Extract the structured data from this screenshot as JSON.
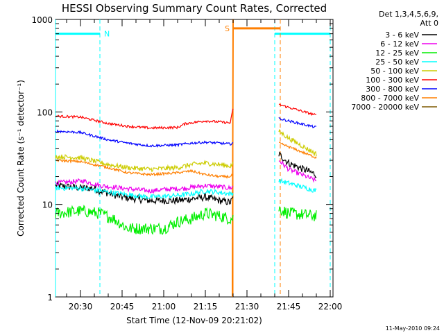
{
  "chart_data": {
    "type": "line",
    "title": "HESSI Observing Summary Count Rates, Corrected",
    "xlabel": "Start Time (12-Nov-09 20:21:02)",
    "ylabel": "Corrected Count Rate (s⁻¹ detector⁻¹)",
    "yscale": "log",
    "ylim": [
      1,
      1000
    ],
    "xlim": [
      "20:21",
      "22:01"
    ],
    "x_ticks": [
      "20:30",
      "20:45",
      "21:00",
      "21:15",
      "21:30",
      "21:45",
      "22:00"
    ],
    "y_ticks": [
      "1",
      "10",
      "100",
      "1000"
    ],
    "legend_header": [
      "Det 1,3,4,5,6,9,",
      "Att 0"
    ],
    "legend_position": "top-right",
    "series": [
      {
        "name": "3 - 6 keV",
        "color": "#000000",
        "noise": 0.03,
        "points": [
          [
            "20:21",
            16
          ],
          [
            "20:31",
            15
          ],
          [
            "20:35",
            15
          ],
          [
            "20:37",
            14
          ],
          [
            "20:45",
            12
          ],
          [
            "20:55",
            11
          ],
          [
            "21:05",
            11
          ],
          [
            "21:10",
            11.5
          ],
          [
            "21:15",
            12
          ],
          [
            "21:20",
            11
          ],
          [
            "21:24",
            10.5
          ],
          [
            "21:26",
            13
          ],
          [
            "21:41:30",
            35
          ],
          [
            "21:45",
            28
          ],
          [
            "21:55",
            21
          ]
        ]
      },
      {
        "name": "6 - 12 keV",
        "color": "#ee00ee",
        "noise": 0.02,
        "points": [
          [
            "20:21",
            17
          ],
          [
            "20:31",
            18
          ],
          [
            "20:37",
            16
          ],
          [
            "20:45",
            15
          ],
          [
            "20:55",
            14
          ],
          [
            "21:00",
            14.5
          ],
          [
            "21:08",
            15
          ],
          [
            "21:15",
            16
          ],
          [
            "21:20",
            15.5
          ],
          [
            "21:24",
            15
          ],
          [
            "21:41:30",
            30
          ],
          [
            "21:45",
            24
          ],
          [
            "21:55",
            18
          ]
        ]
      },
      {
        "name": "12 - 25 keV",
        "color": "#00ee00",
        "noise": 0.05,
        "points": [
          [
            "20:21",
            8
          ],
          [
            "20:30",
            8.5
          ],
          [
            "20:37",
            8
          ],
          [
            "20:42",
            7
          ],
          [
            "20:47",
            5.5
          ],
          [
            "20:55",
            5.5
          ],
          [
            "21:00",
            5.5
          ],
          [
            "21:05",
            6.5
          ],
          [
            "21:10",
            7
          ],
          [
            "21:15",
            8
          ],
          [
            "21:20",
            7.5
          ],
          [
            "21:24",
            7
          ],
          [
            "21:41:30",
            9
          ],
          [
            "21:45",
            8
          ],
          [
            "21:55",
            7.5
          ]
        ]
      },
      {
        "name": "25 - 50 keV",
        "color": "#00ffff",
        "noise": 0.02,
        "points": [
          [
            "20:21",
            15
          ],
          [
            "20:30",
            15
          ],
          [
            "20:37",
            14
          ],
          [
            "20:45",
            13
          ],
          [
            "20:55",
            12
          ],
          [
            "21:05",
            12.5
          ],
          [
            "21:10",
            13
          ],
          [
            "21:15",
            14
          ],
          [
            "21:20",
            13.5
          ],
          [
            "21:24",
            13
          ],
          [
            "21:41:30",
            18
          ],
          [
            "21:45",
            17
          ],
          [
            "21:55",
            14
          ]
        ]
      },
      {
        "name": "50 - 100 keV",
        "color": "#cccc00",
        "noise": 0.02,
        "points": [
          [
            "20:21",
            33
          ],
          [
            "20:30",
            32
          ],
          [
            "20:40",
            27
          ],
          [
            "20:47",
            25
          ],
          [
            "20:55",
            24
          ],
          [
            "21:05",
            25
          ],
          [
            "21:10",
            27
          ],
          [
            "21:15",
            28
          ],
          [
            "21:20",
            27
          ],
          [
            "21:24",
            26
          ],
          [
            "21:41:30",
            62
          ],
          [
            "21:45",
            52
          ],
          [
            "21:55",
            35
          ]
        ]
      },
      {
        "name": "100 - 300 keV",
        "color": "#ff0000",
        "noise": 0.01,
        "points": [
          [
            "20:21",
            90
          ],
          [
            "20:30",
            88
          ],
          [
            "20:40",
            75
          ],
          [
            "20:47",
            70
          ],
          [
            "20:55",
            67
          ],
          [
            "21:05",
            68
          ],
          [
            "21:08",
            75
          ],
          [
            "21:15",
            80
          ],
          [
            "21:20",
            78
          ],
          [
            "21:24",
            76
          ],
          [
            "21:25",
            110
          ],
          [
            "21:41:30",
            120
          ],
          [
            "21:45",
            112
          ],
          [
            "21:55",
            92
          ]
        ]
      },
      {
        "name": "300 - 800 keV",
        "color": "#0000ff",
        "noise": 0.01,
        "points": [
          [
            "20:21",
            62
          ],
          [
            "20:30",
            60
          ],
          [
            "20:40",
            50
          ],
          [
            "20:47",
            46
          ],
          [
            "20:55",
            43
          ],
          [
            "21:05",
            44
          ],
          [
            "21:10",
            46
          ],
          [
            "21:15",
            47
          ],
          [
            "21:20",
            46
          ],
          [
            "21:24",
            45
          ],
          [
            "21:41:30",
            85
          ],
          [
            "21:45",
            80
          ],
          [
            "21:55",
            68
          ]
        ]
      },
      {
        "name": "800 - 7000 keV",
        "color": "#ff7f00",
        "noise": 0.01,
        "points": [
          [
            "20:21",
            30
          ],
          [
            "20:30",
            29
          ],
          [
            "20:40",
            25
          ],
          [
            "20:47",
            22
          ],
          [
            "20:55",
            21
          ],
          [
            "21:05",
            22
          ],
          [
            "21:10",
            23
          ],
          [
            "21:15",
            21
          ],
          [
            "21:20",
            20
          ],
          [
            "21:24",
            20
          ],
          [
            "21:41:30",
            46
          ],
          [
            "21:45",
            42
          ],
          [
            "21:55",
            32
          ]
        ]
      },
      {
        "name": "7000 - 20000 keV",
        "color": "#7f5a00",
        "noise": 0.0,
        "points": []
      }
    ],
    "overlays": {
      "night": {
        "label": "N",
        "color": "#00ffff",
        "level": 700,
        "bars": [
          [
            "20:21",
            "20:37"
          ],
          [
            "21:40",
            "22:00"
          ]
        ],
        "dashed_at": [
          "20:37",
          "21:40",
          "22:00"
        ],
        "solid_at": [
          "20:21"
        ]
      },
      "saa": {
        "label": "S",
        "color": "#ff7f00",
        "level": 800,
        "bars": [
          [
            "21:25",
            "21:42"
          ]
        ],
        "solid_at": [
          "21:25"
        ],
        "dashed_at": [
          "21:42"
        ]
      }
    }
  },
  "footer": "11-May-2010 09:24"
}
